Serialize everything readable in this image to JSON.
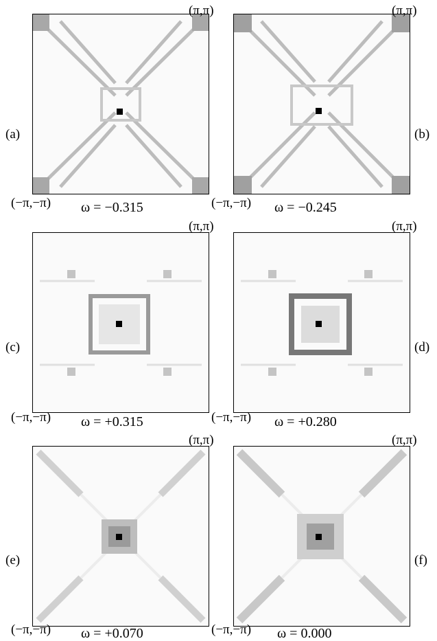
{
  "panels": [
    {
      "label": "(a)",
      "omega": "ω = −0.315",
      "corner_tr": "(π,π)",
      "corner_bl": "(−π,−π)",
      "pattern": "x-arms"
    },
    {
      "label": "(b)",
      "omega": "ω = −0.245",
      "corner_tr": "(π,π)",
      "corner_bl": "(−π,−π)",
      "pattern": "x-arms"
    },
    {
      "label": "(c)",
      "omega": "ω = +0.315",
      "corner_tr": "(π,π)",
      "corner_bl": "(−π,−π)",
      "pattern": "central-square"
    },
    {
      "label": "(d)",
      "omega": "ω = +0.280",
      "corner_tr": "(π,π)",
      "corner_bl": "(−π,−π)",
      "pattern": "central-square"
    },
    {
      "label": "(e)",
      "omega": "ω = +0.070",
      "corner_tr": "(π,π)",
      "corner_bl": "(−π,−π)",
      "pattern": "faint-x"
    },
    {
      "label": "(f)",
      "omega": "ω = 0.000",
      "corner_tr": "(π,π)",
      "corner_bl": "(−π,−π)",
      "pattern": "faint-x"
    }
  ]
}
